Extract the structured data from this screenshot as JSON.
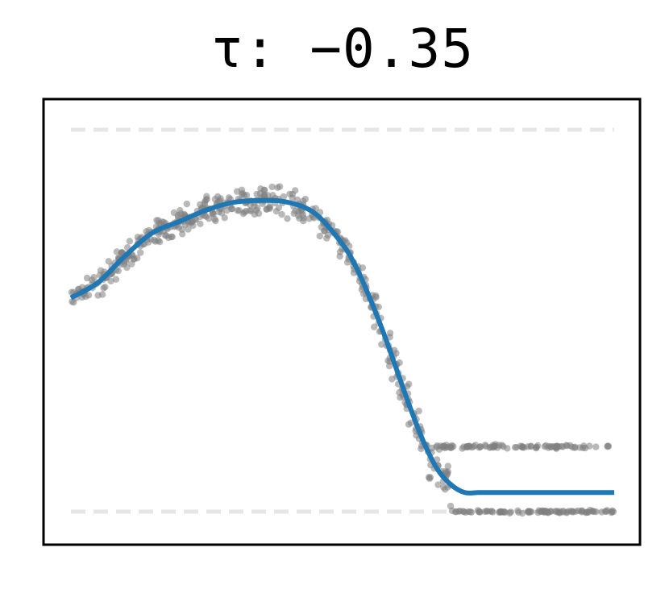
{
  "chart_data": {
    "type": "scatter",
    "title": "τ: −0.35",
    "xlabel": "",
    "ylabel": "",
    "xlim": [
      0,
      1
    ],
    "ylim": [
      -0.05,
      1.05
    ],
    "grid": false,
    "axes_ticks": false,
    "reference_lines": [
      {
        "y": 1.0,
        "style": "dashed",
        "color": "#e6e6e6"
      },
      {
        "y": 0.0,
        "style": "dashed",
        "color": "#e6e6e6"
      }
    ],
    "fit_curve": {
      "color": "#1f77b4",
      "x": [
        0.0,
        0.05,
        0.1,
        0.15,
        0.2,
        0.25,
        0.3,
        0.35,
        0.4,
        0.45,
        0.5,
        0.525,
        0.55,
        0.575,
        0.6,
        0.625,
        0.65,
        0.675,
        0.7,
        0.725,
        0.75,
        0.775,
        0.8,
        0.85,
        0.9,
        0.95,
        1.0
      ],
      "y": [
        0.56,
        0.6,
        0.67,
        0.73,
        0.76,
        0.79,
        0.81,
        0.815,
        0.81,
        0.78,
        0.7,
        0.64,
        0.56,
        0.47,
        0.37,
        0.27,
        0.18,
        0.11,
        0.07,
        0.05,
        0.05,
        0.05,
        0.05,
        0.05,
        0.05,
        0.05,
        0.05
      ]
    },
    "series": [
      {
        "color": "#808080",
        "trend_x": [
          0.0,
          0.05,
          0.1,
          0.15,
          0.2,
          0.25,
          0.3,
          0.35,
          0.4,
          0.45,
          0.5,
          0.525,
          0.55,
          0.575,
          0.6,
          0.625,
          0.65,
          0.675,
          0.7
        ],
        "trend_y": [
          0.56,
          0.6,
          0.67,
          0.73,
          0.76,
          0.79,
          0.81,
          0.815,
          0.81,
          0.78,
          0.7,
          0.64,
          0.56,
          0.47,
          0.37,
          0.27,
          0.18,
          0.11,
          0.07
        ],
        "noise": 0.035,
        "upper_band_x": [
          0.67,
          1.0
        ],
        "upper_band_y": 0.17,
        "lower_band_x": [
          0.7,
          1.0
        ],
        "lower_band_y": 0.0,
        "point_count": 650
      }
    ]
  }
}
